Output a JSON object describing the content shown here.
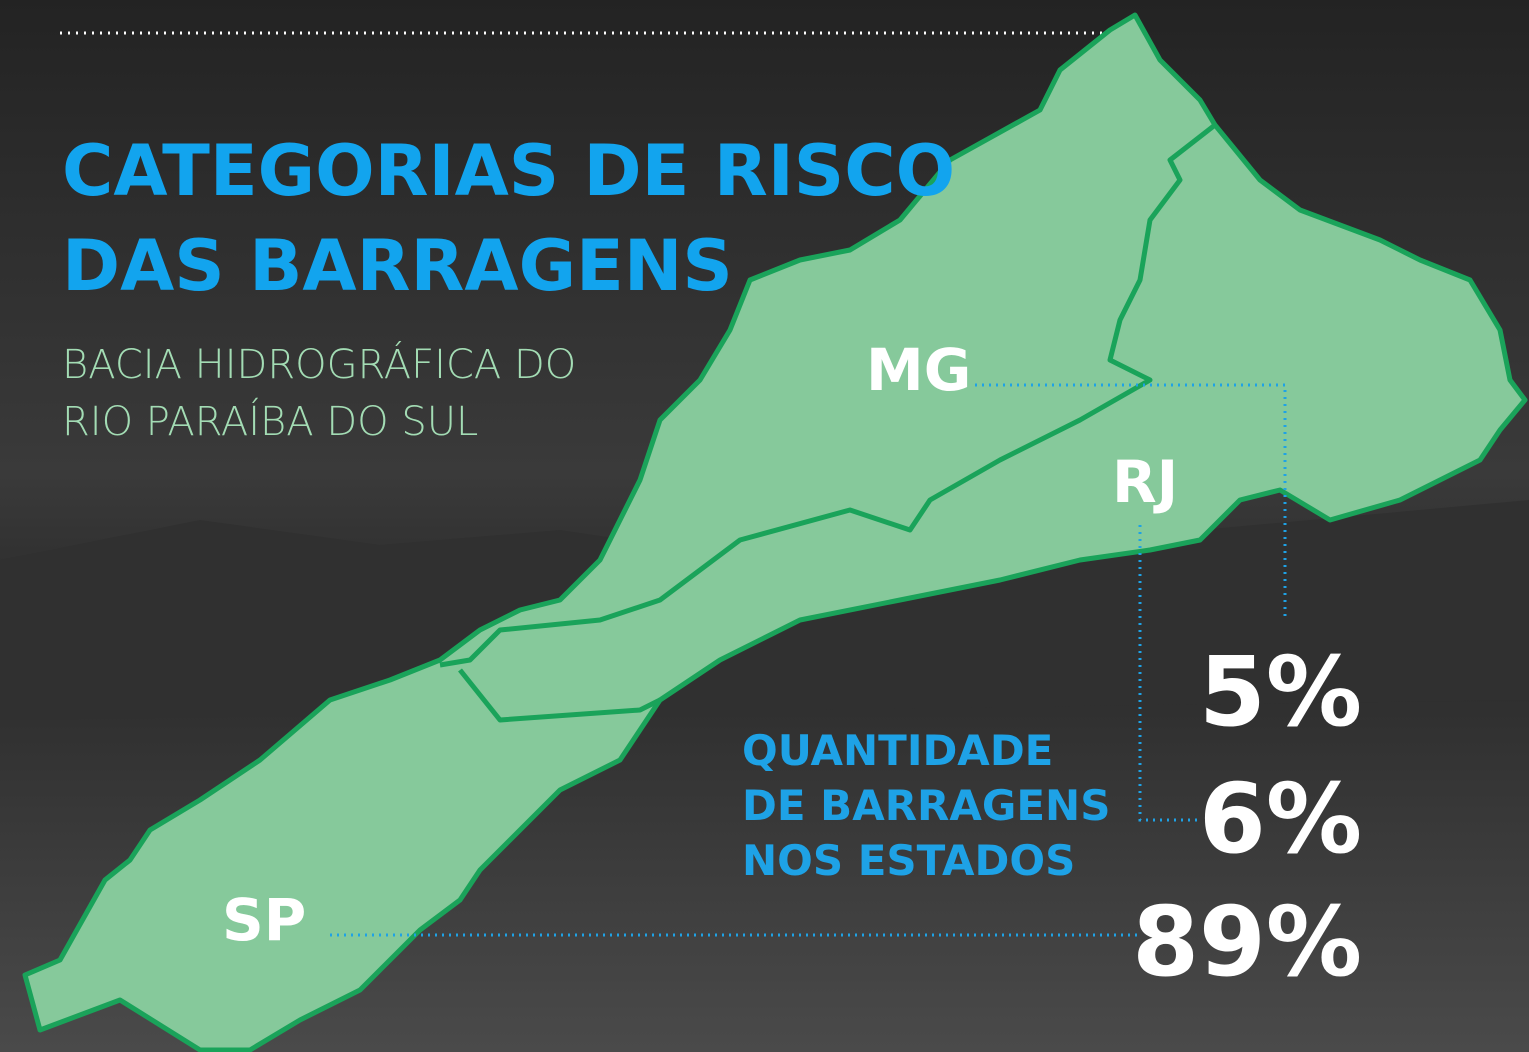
{
  "title": {
    "lines": [
      "CATEGORIAS DE RISCO",
      "DAS BARRAGENS"
    ]
  },
  "subtitle": {
    "lines": [
      "BACIA HIDROGRÁFICA DO",
      "RIO PARAÍBA DO SUL"
    ]
  },
  "states": [
    {
      "label": "MG",
      "share": "5%"
    },
    {
      "label": "RJ",
      "share": "6%"
    },
    {
      "label": "SP",
      "share": "89%"
    }
  ],
  "legend": {
    "lines": [
      "QUANTIDADE",
      "DE BARRAGENS",
      "NOS ESTADOS"
    ]
  }
}
